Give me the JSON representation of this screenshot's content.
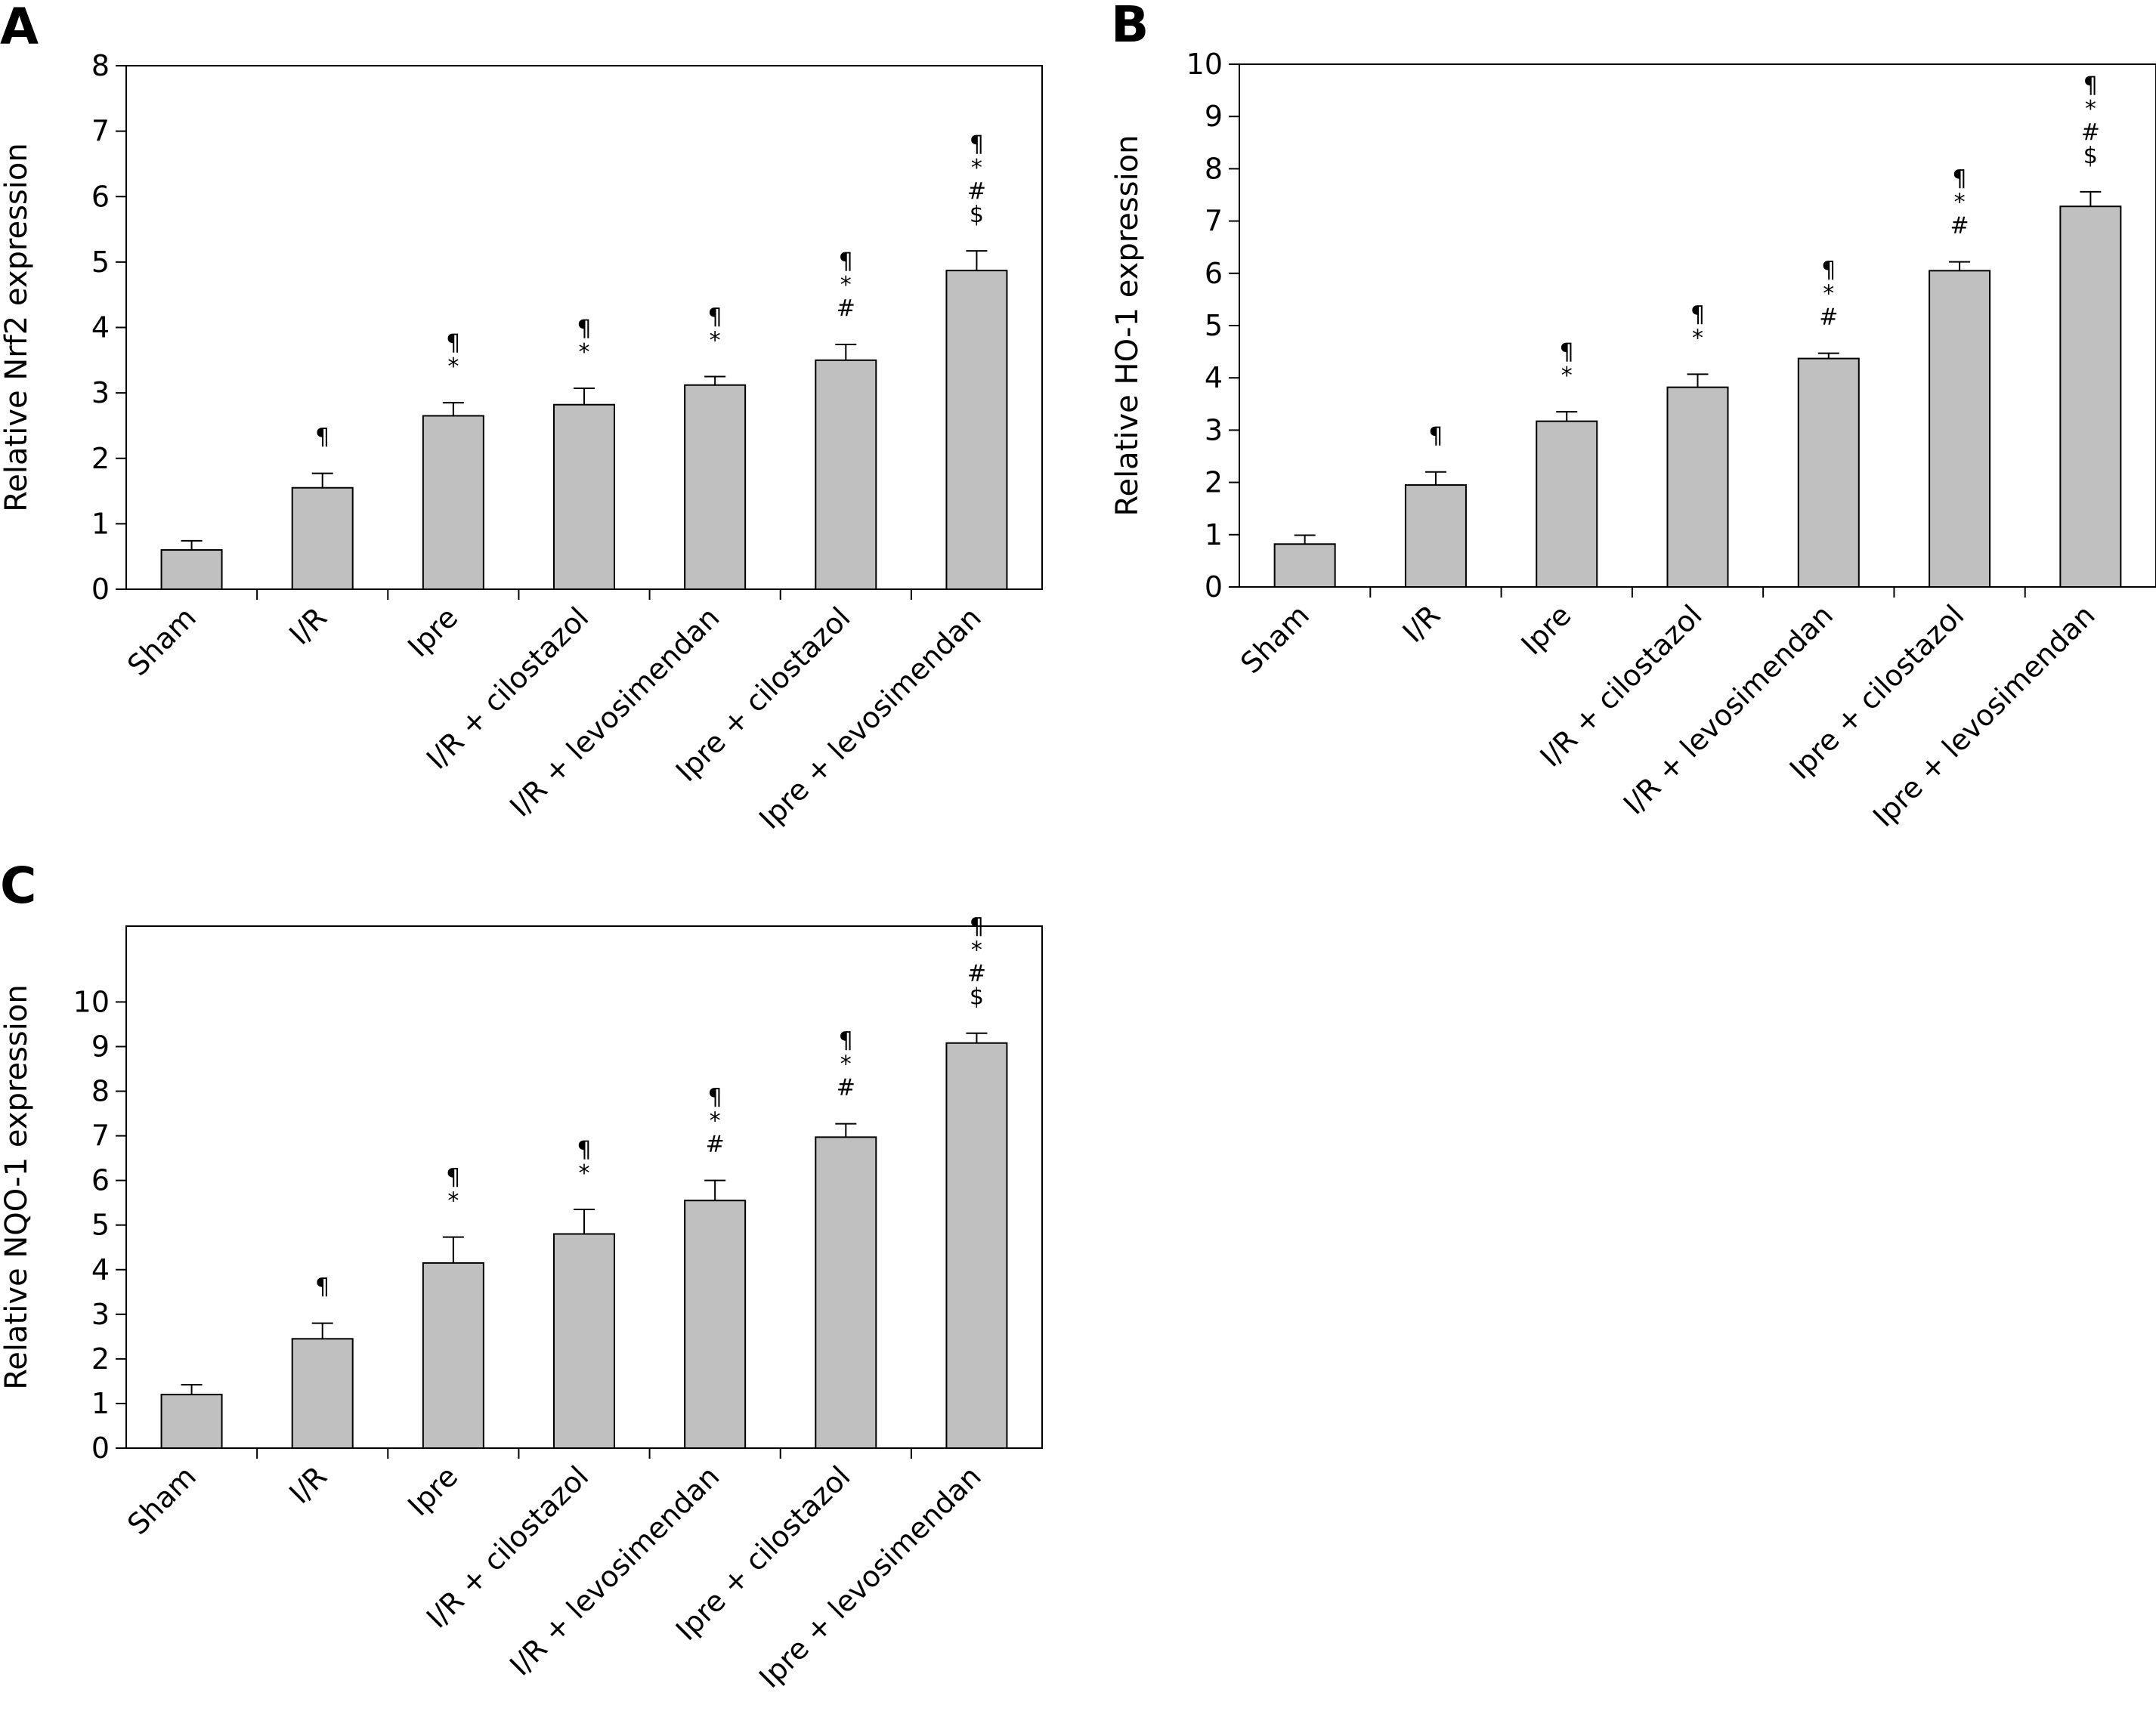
{
  "chart_data": [
    {
      "panel": "A",
      "type": "bar",
      "categories": [
        "Sham",
        "I/R",
        "Ipre",
        "I/R + cilostazol",
        "I/R + levosimendan",
        "Ipre + cilostazol",
        "Ipre + levosimendan"
      ],
      "values": [
        0.6,
        1.55,
        2.65,
        2.82,
        3.12,
        3.5,
        4.87
      ],
      "errors": [
        0.14,
        0.22,
        0.2,
        0.25,
        0.13,
        0.24,
        0.3
      ],
      "annotations": [
        [],
        [
          "¶"
        ],
        [
          "¶",
          "*"
        ],
        [
          "¶",
          "*"
        ],
        [
          "¶",
          "*"
        ],
        [
          "¶",
          "*",
          "#"
        ],
        [
          "¶",
          "*",
          "#",
          "$"
        ]
      ],
      "ylabel": "Relative Nrf2 expression",
      "xlabel": "",
      "ylim": [
        0,
        8
      ],
      "yticks": [
        0,
        1,
        2,
        3,
        4,
        5,
        6,
        7,
        8
      ],
      "grid": false,
      "bar_color": "#c0c0c0"
    },
    {
      "panel": "B",
      "type": "bar",
      "categories": [
        "Sham",
        "I/R",
        "Ipre",
        "I/R + cilostazol",
        "I/R + levosimendan",
        "Ipre + cilostazol",
        "Ipre + levosimendan"
      ],
      "values": [
        0.82,
        1.95,
        3.17,
        3.82,
        4.37,
        6.05,
        7.28
      ],
      "errors": [
        0.17,
        0.25,
        0.18,
        0.25,
        0.1,
        0.17,
        0.28
      ],
      "annotations": [
        [],
        [
          "¶"
        ],
        [
          "¶",
          "*"
        ],
        [
          "¶",
          "*"
        ],
        [
          "¶",
          "*",
          "#"
        ],
        [
          "¶",
          "*",
          "#"
        ],
        [
          "¶",
          "*",
          "#",
          "$"
        ]
      ],
      "ylabel": "Relative HO-1 expression",
      "xlabel": "",
      "ylim": [
        0,
        10
      ],
      "yticks": [
        0,
        1,
        2,
        3,
        4,
        5,
        6,
        7,
        8,
        9,
        10
      ],
      "grid": false,
      "bar_color": "#c0c0c0"
    },
    {
      "panel": "C",
      "type": "bar",
      "categories": [
        "Sham",
        "I/R",
        "Ipre",
        "I/R + cilostazol",
        "I/R + levosimendan",
        "Ipre + cilostazol",
        "Ipre + levosimendan"
      ],
      "values": [
        1.2,
        2.45,
        4.15,
        4.8,
        5.55,
        6.97,
        9.08
      ],
      "errors": [
        0.22,
        0.35,
        0.58,
        0.55,
        0.45,
        0.3,
        0.22
      ],
      "annotations": [
        [],
        [
          "¶"
        ],
        [
          "¶",
          "*"
        ],
        [
          "¶",
          "*"
        ],
        [
          "¶",
          "*",
          "#"
        ],
        [
          "¶",
          "*",
          "#"
        ],
        [
          "¶",
          "*",
          "#",
          "$"
        ]
      ],
      "ylabel": "Relative NQO-1 expression",
      "xlabel": "",
      "ylim": [
        0,
        11.7
      ],
      "yticks": [
        0,
        1,
        2,
        3,
        4,
        5,
        6,
        7,
        8,
        9,
        10
      ],
      "grid": false,
      "bar_color": "#c0c0c0"
    }
  ]
}
